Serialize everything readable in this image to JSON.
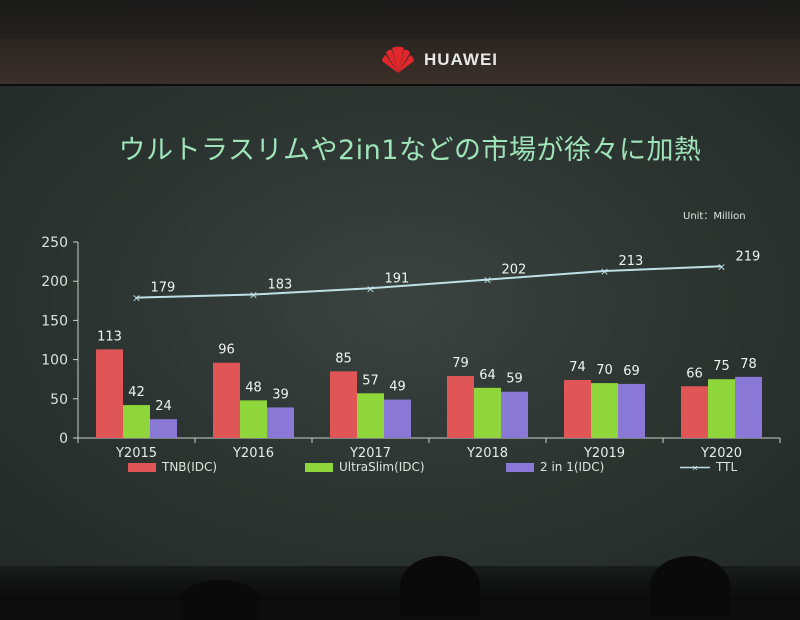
{
  "brand": {
    "name": "HUAWEI"
  },
  "slide": {
    "title": "ウルトラスリムや2in1などの市場が徐々に加熱",
    "unit": "Unit：Million"
  },
  "colors": {
    "tnb": "#e05656",
    "ultraslim": "#8ed63a",
    "twoinone": "#8a78d6",
    "ttl": "#bfe0e6"
  },
  "chart_data": {
    "type": "bar",
    "categories": [
      "Y2015",
      "Y2016",
      "Y2017",
      "Y2018",
      "Y2019",
      "Y2020"
    ],
    "series": [
      {
        "name": "TNB(IDC)",
        "type": "bar",
        "values": [
          113,
          96,
          85,
          79,
          74,
          66
        ]
      },
      {
        "name": "UltraSlim(IDC)",
        "type": "bar",
        "values": [
          42,
          48,
          57,
          64,
          70,
          75
        ]
      },
      {
        "name": "2 in 1(IDC)",
        "type": "bar",
        "values": [
          24,
          39,
          49,
          59,
          69,
          78
        ]
      },
      {
        "name": "TTL",
        "type": "line",
        "values": [
          179,
          183,
          191,
          202,
          213,
          219
        ]
      }
    ],
    "yticks": [
      0,
      50,
      100,
      150,
      200,
      250
    ],
    "ylim": [
      0,
      250
    ],
    "grid": false,
    "legend_position": "bottom"
  }
}
